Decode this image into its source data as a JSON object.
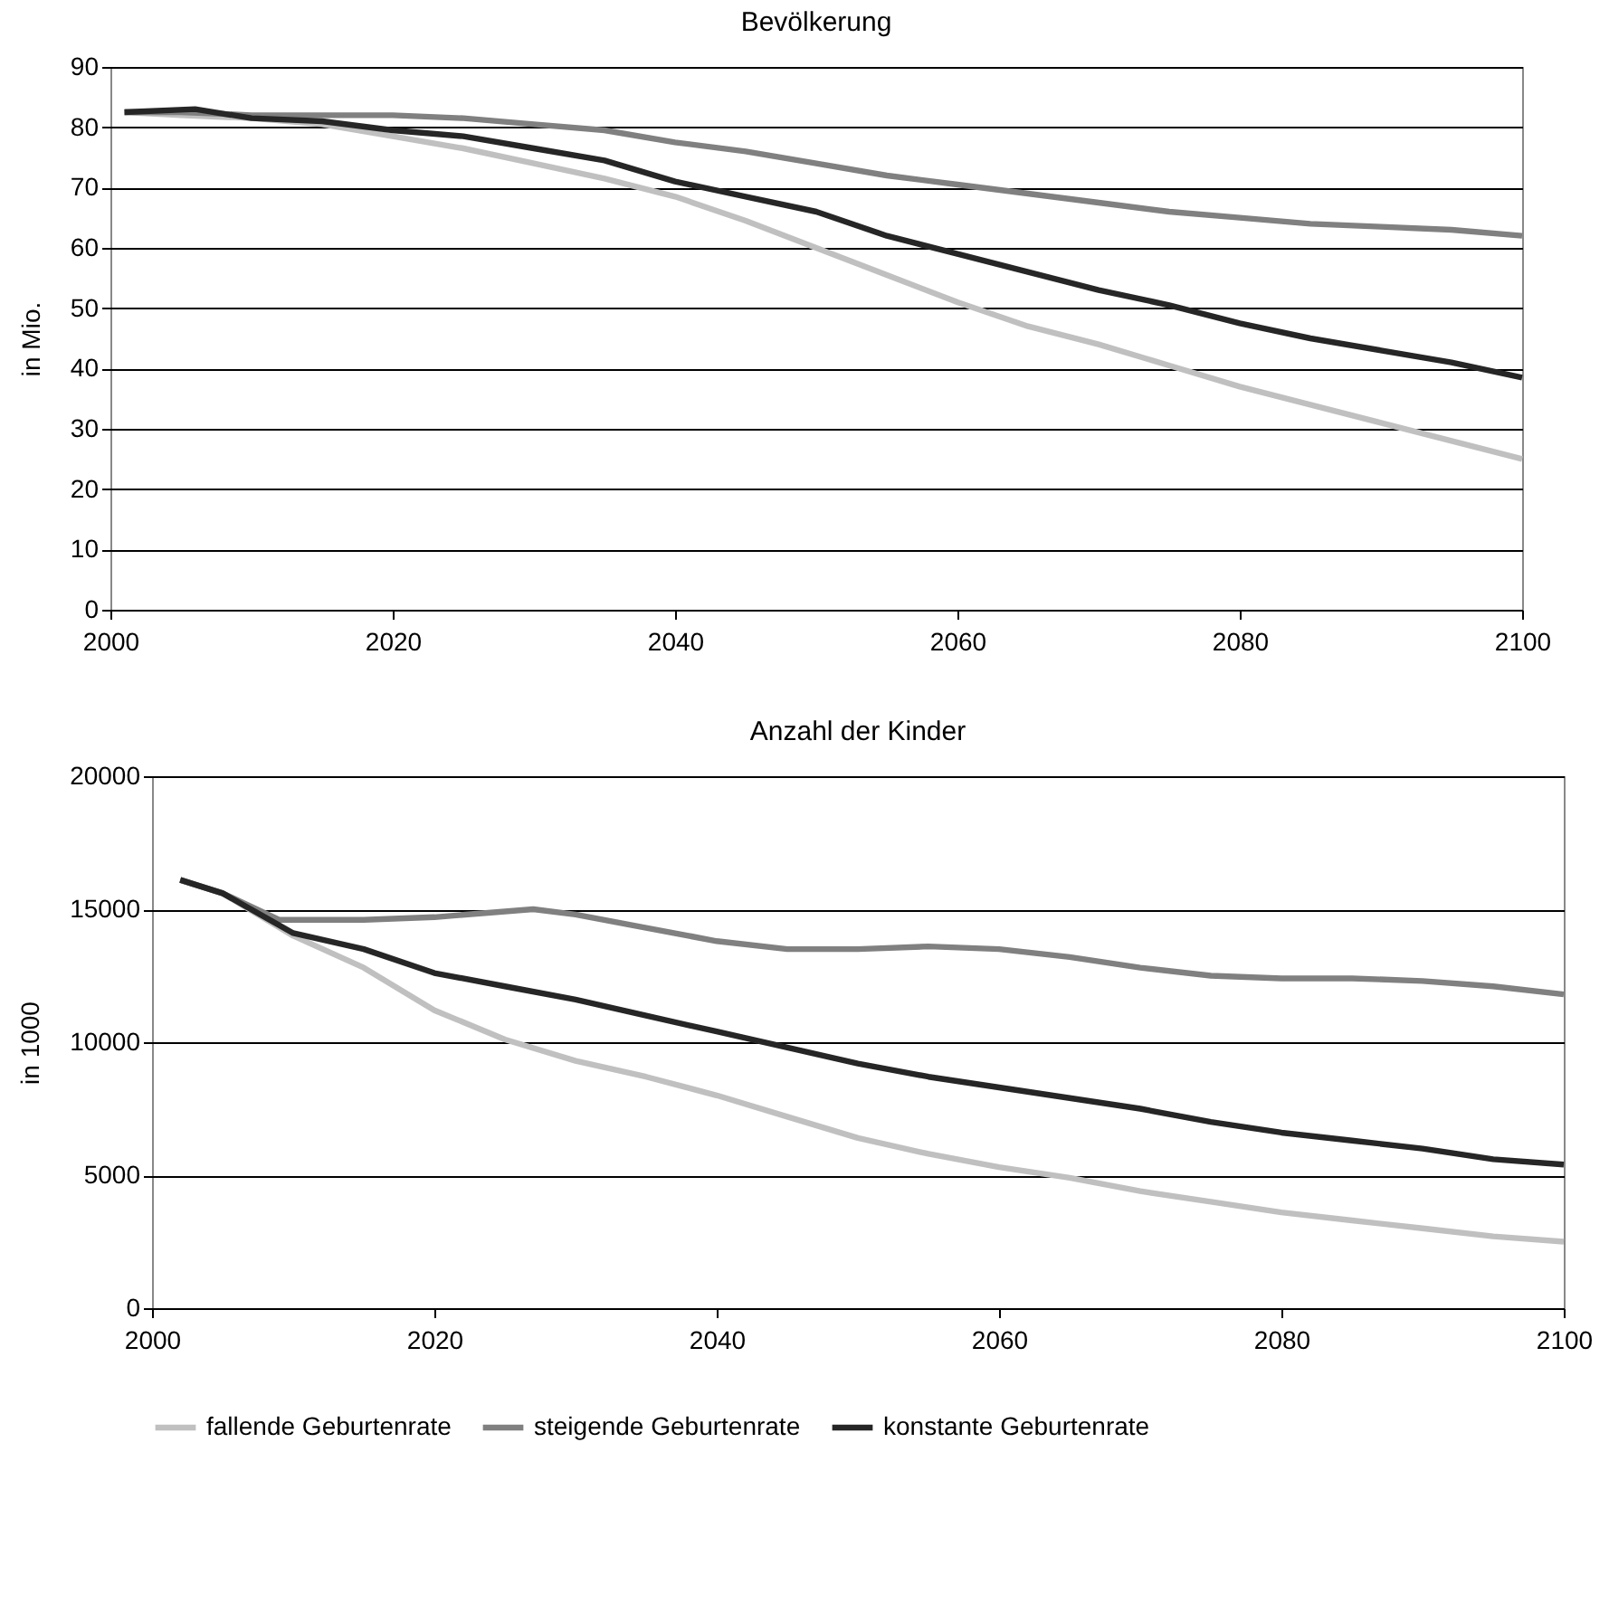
{
  "chart_data": [
    {
      "type": "line",
      "title": "Bevölkerung",
      "ylabel": "in Mio.",
      "xlim": [
        2000,
        2100
      ],
      "xticks": [
        2000,
        2020,
        2040,
        2060,
        2080,
        2100
      ],
      "ylim": [
        0,
        90
      ],
      "yticks": [
        0,
        10,
        20,
        30,
        40,
        50,
        60,
        70,
        80,
        90
      ],
      "grid": "y",
      "legend": false,
      "series": [
        {
          "color": "#c0c0c0",
          "x": [
            2001,
            2005,
            2010,
            2015,
            2020,
            2025,
            2030,
            2035,
            2040,
            2045,
            2050,
            2055,
            2060,
            2065,
            2070,
            2075,
            2080,
            2085,
            2090,
            2095,
            2100
          ],
          "values": [
            82.5,
            82,
            81.5,
            80.5,
            78.5,
            76.5,
            74,
            71.5,
            68.5,
            64.5,
            60,
            55.5,
            51,
            47,
            44,
            40.5,
            37,
            34,
            31,
            28,
            25
          ]
        },
        {
          "color": "#808080",
          "x": [
            2001,
            2005,
            2010,
            2015,
            2020,
            2025,
            2030,
            2035,
            2040,
            2045,
            2050,
            2055,
            2060,
            2065,
            2070,
            2075,
            2080,
            2085,
            2090,
            2095,
            2100
          ],
          "values": [
            82.5,
            82.5,
            82,
            82,
            82,
            81.5,
            80.5,
            79.5,
            77.5,
            76,
            74,
            72,
            70.5,
            69,
            67.5,
            66,
            65,
            64,
            63.5,
            63,
            62
          ]
        },
        {
          "color": "#262626",
          "x": [
            2001,
            2006,
            2010,
            2015,
            2020,
            2025,
            2030,
            2035,
            2040,
            2045,
            2050,
            2055,
            2060,
            2065,
            2070,
            2075,
            2080,
            2085,
            2090,
            2095,
            2100
          ],
          "values": [
            82.5,
            83,
            81.5,
            81,
            79.5,
            78.5,
            76.5,
            74.5,
            71,
            68.5,
            66,
            62,
            59,
            56,
            53,
            50.5,
            47.5,
            45,
            43,
            41,
            38.5
          ]
        }
      ]
    },
    {
      "type": "line",
      "title": "Anzahl der Kinder",
      "ylabel": "in 1000",
      "xlim": [
        2000,
        2100
      ],
      "xticks": [
        2000,
        2020,
        2040,
        2060,
        2080,
        2100
      ],
      "ylim": [
        0,
        20000
      ],
      "yticks": [
        0,
        5000,
        10000,
        15000,
        20000
      ],
      "grid": "y",
      "legend": "bottom",
      "series": [
        {
          "name": "fallende Geburtenrate",
          "color": "#c0c0c0",
          "x": [
            2002,
            2005,
            2010,
            2015,
            2020,
            2025,
            2030,
            2035,
            2040,
            2045,
            2050,
            2055,
            2060,
            2065,
            2070,
            2075,
            2080,
            2085,
            2090,
            2095,
            2100
          ],
          "values": [
            16100,
            15600,
            14000,
            12800,
            11200,
            10100,
            9300,
            8700,
            8000,
            7200,
            6400,
            5800,
            5300,
            4900,
            4400,
            4000,
            3600,
            3300,
            3000,
            2700,
            2500
          ]
        },
        {
          "name": "steigende Geburtenrate",
          "color": "#808080",
          "x": [
            2002,
            2005,
            2009,
            2015,
            2020,
            2027,
            2030,
            2035,
            2040,
            2045,
            2050,
            2055,
            2060,
            2065,
            2070,
            2075,
            2080,
            2085,
            2090,
            2095,
            2100
          ],
          "values": [
            16100,
            15600,
            14600,
            14600,
            14700,
            15000,
            14800,
            14300,
            13800,
            13500,
            13500,
            13600,
            13500,
            13200,
            12800,
            12500,
            12400,
            12400,
            12300,
            12100,
            11800
          ]
        },
        {
          "name": "konstante Geburtenrate",
          "color": "#262626",
          "x": [
            2002,
            2005,
            2010,
            2015,
            2020,
            2025,
            2030,
            2035,
            2040,
            2045,
            2050,
            2055,
            2060,
            2065,
            2070,
            2075,
            2080,
            2085,
            2090,
            2095,
            2100
          ],
          "values": [
            16100,
            15600,
            14100,
            13500,
            12600,
            12100,
            11600,
            11000,
            10400,
            9800,
            9200,
            8700,
            8300,
            7900,
            7500,
            7000,
            6600,
            6300,
            6000,
            5600,
            5400
          ]
        }
      ]
    }
  ]
}
